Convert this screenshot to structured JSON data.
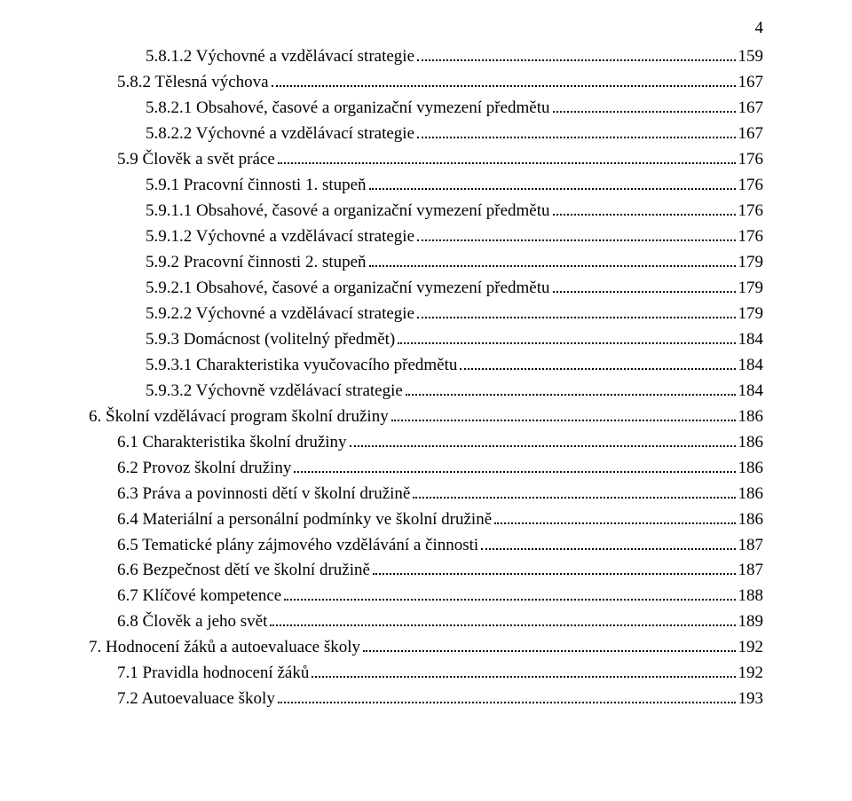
{
  "page_number": "4",
  "font": {
    "family": "Times New Roman",
    "size_pt": 14,
    "color": "#000000"
  },
  "background_color": "#ffffff",
  "toc": [
    {
      "indent": 2,
      "title": "5.8.1.2   Výchovné a vzdělávací strategie",
      "page": "159"
    },
    {
      "indent": 1,
      "title": "5.8.2   Tělesná výchova",
      "page": "167"
    },
    {
      "indent": 2,
      "title": "5.8.2.1   Obsahové, časové a organizační vymezení předmětu",
      "page": "167"
    },
    {
      "indent": 2,
      "title": "5.8.2.2   Výchovné a vzdělávací strategie",
      "page": "167"
    },
    {
      "indent": 1,
      "title": "5.9   Člověk a svět práce",
      "page": "176"
    },
    {
      "indent": 2,
      "title": "5.9.1   Pracovní činnosti 1. stupeň",
      "page": "176"
    },
    {
      "indent": 3,
      "title": "5.9.1.1   Obsahové, časové a organizační vymezení předmětu",
      "page": "176"
    },
    {
      "indent": 3,
      "title": "5.9.1.2   Výchovné a vzdělávací strategie",
      "page": "176"
    },
    {
      "indent": 2,
      "title": "5.9.2   Pracovní činnosti 2. stupeň",
      "page": "179"
    },
    {
      "indent": 3,
      "title": "5.9.2.1   Obsahové, časové a organizační vymezení předmětu",
      "page": "179"
    },
    {
      "indent": 3,
      "title": "5.9.2.2   Výchovné a vzdělávací strategie",
      "page": "179"
    },
    {
      "indent": 2,
      "title": "5.9.3   Domácnost (volitelný předmět)",
      "page": "184"
    },
    {
      "indent": 3,
      "title": "5.9.3.1   Charakteristika vyučovacího předmětu",
      "page": "184"
    },
    {
      "indent": 3,
      "title": "5.9.3.2   Výchovně vzdělávací strategie",
      "page": "184"
    },
    {
      "indent": 0,
      "title": "6.     Školní vzdělávací program školní družiny",
      "page": "186"
    },
    {
      "indent": 1,
      "title": "6.1   Charakteristika školní družiny",
      "page": "186"
    },
    {
      "indent": 1,
      "title": "6.2   Provoz školní družiny",
      "page": "186"
    },
    {
      "indent": 1,
      "title": "6.3   Práva a povinnosti dětí v školní družině",
      "page": "186"
    },
    {
      "indent": 1,
      "title": "6.4   Materiální a personální podmínky ve školní družině",
      "page": "186"
    },
    {
      "indent": 1,
      "title": "6.5   Tematické plány zájmového vzdělávání a činnosti",
      "page": "187"
    },
    {
      "indent": 1,
      "title": "6.6   Bezpečnost dětí ve školní družině",
      "page": "187"
    },
    {
      "indent": 1,
      "title": "6.7   Klíčové kompetence",
      "page": "188"
    },
    {
      "indent": 1,
      "title": "6.8   Člověk a jeho svět",
      "page": "189"
    },
    {
      "indent": 0,
      "title": "7.     Hodnocení žáků a autoevaluace školy",
      "page": "192"
    },
    {
      "indent": 1,
      "title": "7.1   Pravidla hodnocení žáků",
      "page": "192"
    },
    {
      "indent": 1,
      "title": "7.2   Autoevaluace školy",
      "page": "193"
    }
  ]
}
